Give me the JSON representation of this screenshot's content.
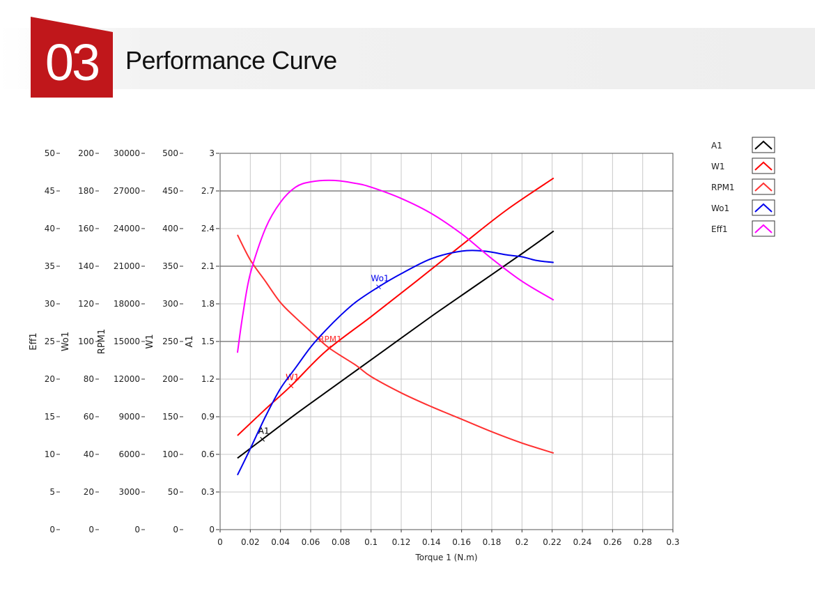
{
  "header": {
    "section_number": "03",
    "title": "Performance Curve",
    "accent_color": "#c0171b"
  },
  "chart_data": {
    "type": "line",
    "xlabel": "Torque 1 (N.m)",
    "xlim": [
      0,
      0.3
    ],
    "x_ticks": [
      "0",
      "0.02",
      "0.04",
      "0.06",
      "0.08",
      "0.1",
      "0.12",
      "0.14",
      "0.16",
      "0.18",
      "0.2",
      "0.22",
      "0.24",
      "0.26",
      "0.28",
      "0.3"
    ],
    "grid": true,
    "legend_position": "right",
    "y_axes": [
      {
        "label": "Eff1",
        "range": [
          0,
          50
        ],
        "ticks": [
          "0",
          "5",
          "10",
          "15",
          "20",
          "25",
          "30",
          "35",
          "40",
          "45",
          "50"
        ]
      },
      {
        "label": "Wo1",
        "range": [
          0,
          200
        ],
        "ticks": [
          "0",
          "20",
          "40",
          "60",
          "80",
          "100",
          "120",
          "140",
          "160",
          "180",
          "200"
        ]
      },
      {
        "label": "RPM1",
        "range": [
          0,
          30000
        ],
        "ticks": [
          "0",
          "3000",
          "6000",
          "9000",
          "12000",
          "15000",
          "18000",
          "21000",
          "24000",
          "27000",
          "30000"
        ]
      },
      {
        "label": "W1",
        "range": [
          0,
          500
        ],
        "ticks": [
          "0",
          "50",
          "100",
          "150",
          "200",
          "250",
          "300",
          "350",
          "400",
          "450",
          "500"
        ]
      },
      {
        "label": "A1",
        "range": [
          0,
          3
        ],
        "ticks": [
          "0",
          "0.3",
          "0.6",
          "0.9",
          "1.2",
          "1.5",
          "1.8",
          "2.1",
          "2.4",
          "2.7",
          "3"
        ]
      }
    ],
    "series": [
      {
        "name": "A1",
        "axis": "A1",
        "color": "#000000",
        "x": [
          0.0115,
          0.028,
          0.05,
          0.08,
          0.11,
          0.14,
          0.17,
          0.2,
          0.221
        ],
        "y": [
          0.57,
          0.72,
          0.92,
          1.18,
          1.44,
          1.7,
          1.95,
          2.2,
          2.38
        ],
        "marker": {
          "x": 0.028,
          "y": 0.72
        }
      },
      {
        "name": "W1",
        "axis": "W1",
        "color": "#ff0000",
        "x": [
          0.0115,
          0.03,
          0.047,
          0.07,
          0.1,
          0.13,
          0.16,
          0.19,
          0.221
        ],
        "y": [
          125,
          160,
          191,
          237,
          283,
          330,
          378,
          425,
          467
        ],
        "marker": {
          "x": 0.047,
          "y": 191
        }
      },
      {
        "name": "RPM1",
        "axis": "RPM1",
        "color": "#ff3030",
        "x": [
          0.0115,
          0.02,
          0.03,
          0.04,
          0.05,
          0.06,
          0.072,
          0.09,
          0.1,
          0.12,
          0.14,
          0.16,
          0.18,
          0.2,
          0.221
        ],
        "y": [
          23500,
          21500,
          19800,
          18100,
          16900,
          15800,
          14500,
          13100,
          12200,
          10900,
          9800,
          8800,
          7800,
          6900,
          6100
        ],
        "marker": {
          "x": 0.072,
          "y": 14500
        }
      },
      {
        "name": "Wo1",
        "axis": "Wo1",
        "color": "#0000ee",
        "x": [
          0.0115,
          0.02,
          0.03,
          0.04,
          0.05,
          0.06,
          0.07,
          0.08,
          0.09,
          0.105,
          0.12,
          0.14,
          0.16,
          0.175,
          0.19,
          0.2,
          0.21,
          0.221
        ],
        "y": [
          29,
          43,
          60,
          75,
          86,
          97,
          106,
          114,
          121,
          129,
          136,
          144,
          148,
          148,
          146,
          145,
          143,
          142
        ],
        "marker": {
          "x": 0.105,
          "y": 129
        }
      },
      {
        "name": "Eff1",
        "axis": "Eff1",
        "color": "#ff00ff",
        "x": [
          0.0115,
          0.015,
          0.02,
          0.03,
          0.04,
          0.05,
          0.06,
          0.075,
          0.09,
          0.1,
          0.12,
          0.14,
          0.16,
          0.18,
          0.2,
          0.221
        ],
        "y": [
          23.5,
          28.5,
          34,
          40,
          43.5,
          45.5,
          46.2,
          46.4,
          46,
          45.5,
          44,
          42,
          39.3,
          36,
          33,
          30.5
        ]
      }
    ]
  }
}
